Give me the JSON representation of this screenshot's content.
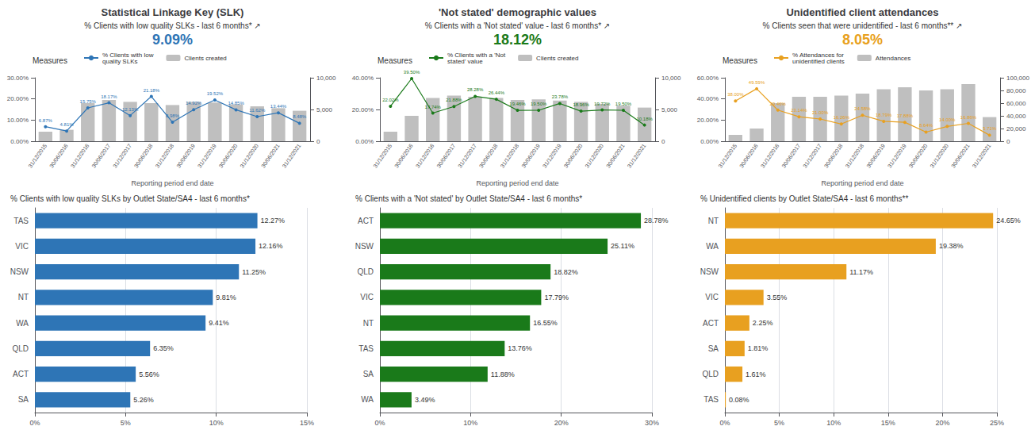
{
  "chart_data": [
    {
      "type": "bar",
      "title": "Statistical Linkage Key (SLK)",
      "subtitle": "% Clients with low quality SLKs - last 6 months* ↗",
      "annotations": [
        "9.09%"
      ],
      "legend_title": "Measures",
      "legend": "top",
      "xlabel": "Reporting period end date",
      "categories": [
        "31/12/2015",
        "30/06/2016",
        "31/12/2016",
        "30/06/2017",
        "31/12/2017",
        "30/06/2018",
        "31/12/2018",
        "30/06/2019",
        "31/12/2019",
        "30/06/2020",
        "31/12/2020",
        "30/06/2021",
        "31/12/2021"
      ],
      "series": [
        {
          "name": "% Clients with low\nquality SLKs",
          "type": "line",
          "color": "#2e75b6",
          "marker": "circle",
          "line_style": "solid",
          "data_labels": true,
          "values": [
            6.87,
            4.81,
            15.75,
            18.17,
            12.13,
            21.18,
            8.98,
            14.92,
            19.52,
            14.85,
            11.62,
            13.44,
            8.48
          ],
          "value_labels": [
            "6.87%",
            "4.81%",
            "15.75%",
            "18.17%",
            "12.13%",
            "21.18%",
            "8.98%",
            "14.92%",
            "19.52%",
            "14.85%",
            "11.62%",
            "13.44%",
            "8.48%"
          ]
        },
        {
          "name": "Clients created",
          "type": "bar",
          "color": "#bfbfbf",
          "axis": "y2",
          "values": [
            1500,
            1800,
            6000,
            6500,
            6200,
            6000,
            5700,
            6200,
            6100,
            5800,
            5500,
            5200,
            4800
          ]
        }
      ],
      "ylim": [
        0,
        30
      ],
      "yticks": [
        {
          "value": 0,
          "label": "0.00%"
        },
        {
          "value": 10,
          "label": "10.00%"
        },
        {
          "value": 20,
          "label": "20.00%"
        },
        {
          "value": 30,
          "label": "30.00%"
        }
      ],
      "y2lim": [
        0,
        10000
      ],
      "y2ticks": [
        0,
        {
          "value": 5000,
          "label": "5,000"
        },
        {
          "value": 10000,
          "label": "10,000"
        }
      ],
      "grid": false
    },
    {
      "type": "bar",
      "orientation": "horizontal",
      "title": "% Clients with low quality SLKs by Outlet State/SA4 - last 6 months*",
      "categories": [
        "TAS",
        "VIC",
        "NSW",
        "NT",
        "WA",
        "QLD",
        "ACT",
        "SA"
      ],
      "values": [
        12.27,
        12.16,
        11.25,
        9.81,
        9.41,
        6.35,
        5.56,
        5.26
      ],
      "value_labels": [
        "12.27%",
        "12.16%",
        "11.25%",
        "9.81%",
        "9.41%",
        "6.35%",
        "5.56%",
        "5.26%"
      ],
      "data_labels": true,
      "color": "#2e75b6",
      "xlim": [
        0,
        15
      ],
      "xticks": [
        {
          "value": 0,
          "label": "0%"
        },
        {
          "value": 5,
          "label": "5%"
        },
        {
          "value": 10,
          "label": "10%"
        },
        {
          "value": 15,
          "label": "15%"
        }
      ],
      "grid": true
    },
    {
      "type": "bar",
      "title": "'Not stated' demographic values",
      "subtitle": "% Clients with a 'Not stated' value - last 6 months* ↗",
      "annotations": [
        "18.12%"
      ],
      "legend_title": "Measures",
      "legend": "top",
      "xlabel": "Reporting period end date",
      "categories": [
        "31/12/2015",
        "30/06/2016",
        "31/12/2016",
        "30/06/2017",
        "31/12/2017",
        "30/06/2018",
        "31/12/2018",
        "30/06/2019",
        "31/12/2019",
        "30/06/2020",
        "31/12/2020",
        "30/06/2021",
        "31/12/2021"
      ],
      "series": [
        {
          "name": "% Clients with a 'Not\nstated' value",
          "type": "line",
          "color": "#1a7a1a",
          "marker": "circle",
          "line_style": "solid",
          "data_labels": true,
          "values": [
            22.02,
            39.5,
            17.74,
            21.88,
            28.28,
            26.44,
            19.46,
            19.5,
            23.78,
            18.96,
            19.72,
            19.5,
            10.18
          ],
          "value_labels": [
            "22.02%",
            "39.50%",
            "17.74%",
            "21.88%",
            "28.28%",
            "26.44%",
            "19.46%",
            "19.50%",
            "23.78%",
            "18.96%",
            "19.72%",
            "19.50%",
            "10.18%"
          ]
        },
        {
          "name": "Clients created",
          "type": "bar",
          "color": "#bfbfbf",
          "axis": "y2",
          "values": [
            1500,
            4000,
            6800,
            7200,
            7000,
            6800,
            6500,
            6600,
            6400,
            6200,
            5900,
            5600,
            5300
          ]
        }
      ],
      "ylim": [
        0,
        40
      ],
      "yticks": [
        {
          "value": 0,
          "label": "0.00%"
        },
        {
          "value": 20,
          "label": "20.00%"
        },
        {
          "value": 40,
          "label": "40.00%"
        }
      ],
      "y2lim": [
        0,
        10000
      ],
      "y2ticks": [
        0,
        {
          "value": 5000,
          "label": "5,000"
        },
        {
          "value": 10000,
          "label": "10,000"
        }
      ],
      "grid": false
    },
    {
      "type": "bar",
      "orientation": "horizontal",
      "title": "% Clients with a 'Not stated' by Outlet State/SA4 - last 6 months*",
      "categories": [
        "ACT",
        "NSW",
        "QLD",
        "VIC",
        "NT",
        "TAS",
        "SA",
        "WA"
      ],
      "values": [
        28.78,
        25.11,
        18.82,
        17.79,
        16.55,
        13.76,
        11.88,
        3.49
      ],
      "value_labels": [
        "28.78%",
        "25.11%",
        "18.82%",
        "17.79%",
        "16.55%",
        "13.76%",
        "11.88%",
        "3.49%"
      ],
      "data_labels": true,
      "color": "#1a7a1a",
      "xlim": [
        0,
        30
      ],
      "xticks": [
        {
          "value": 0,
          "label": "0%"
        },
        {
          "value": 10,
          "label": "10%"
        },
        {
          "value": 20,
          "label": "20%"
        },
        {
          "value": 30,
          "label": "30%"
        }
      ],
      "grid": true
    },
    {
      "type": "bar",
      "title": "Unidentified client attendances",
      "subtitle": "% Clients seen that were unidentified - last 6 months** ↗",
      "annotations": [
        "8.05%"
      ],
      "legend_title": "Measures",
      "legend": "top",
      "xlabel": "Reporting period end date",
      "categories": [
        "31/12/2015",
        "30/06/2016",
        "31/12/2016",
        "30/06/2017",
        "31/12/2017",
        "30/06/2018",
        "31/12/2018",
        "30/06/2019",
        "31/12/2019",
        "30/06/2020",
        "31/12/2020",
        "30/06/2021",
        "31/12/2021"
      ],
      "series": [
        {
          "name": "% Attendances for\nunidentified clients",
          "type": "line",
          "color": "#e8a020",
          "marker": "circle",
          "line_style": "solid",
          "data_labels": true,
          "values": [
            38.0,
            49.59,
            29.46,
            23.14,
            21.0,
            16.26,
            24.58,
            18.79,
            17.88,
            8.64,
            14.0,
            16.86,
            5.71
          ],
          "value_labels": [
            "38.00%",
            "49.59%",
            "29.46%",
            "23.14%",
            "21.00%",
            "16.26%",
            "24.58%",
            "18.79%",
            "17.88%",
            "8.64%",
            "14.00%",
            "16.86%",
            "5.71%"
          ]
        },
        {
          "name": "Attendances",
          "type": "bar",
          "color": "#bfbfbf",
          "axis": "y2",
          "values": [
            10000,
            20000,
            60000,
            70000,
            70000,
            72000,
            75000,
            82000,
            85000,
            80000,
            82000,
            90000,
            38000
          ]
        }
      ],
      "ylim": [
        0,
        60
      ],
      "yticks": [
        {
          "value": 0,
          "label": "0.00%"
        },
        {
          "value": 20,
          "label": "20.00%"
        },
        {
          "value": 40,
          "label": "40.00%"
        },
        {
          "value": 60,
          "label": "60.00%"
        }
      ],
      "y2lim": [
        0,
        100000
      ],
      "y2ticks": [
        0,
        {
          "value": 20000,
          "label": "20,000"
        },
        {
          "value": 40000,
          "label": "40,000"
        },
        {
          "value": 60000,
          "label": "60,000"
        },
        {
          "value": 80000,
          "label": "80,000"
        },
        {
          "value": 100000,
          "label": "100,000"
        }
      ],
      "grid": false
    },
    {
      "type": "bar",
      "orientation": "horizontal",
      "title": "% Unidentified clients by Outlet State/SA4 - last 6 months**",
      "categories": [
        "NT",
        "WA",
        "NSW",
        "VIC",
        "ACT",
        "SA",
        "QLD",
        "TAS"
      ],
      "values": [
        24.65,
        19.38,
        11.17,
        3.55,
        2.25,
        1.81,
        1.61,
        0.08
      ],
      "value_labels": [
        "24.65%",
        "19.38%",
        "11.17%",
        "3.55%",
        "2.25%",
        "1.81%",
        "1.61%",
        "0.08%"
      ],
      "data_labels": true,
      "color": "#e8a020",
      "xlim": [
        0,
        25
      ],
      "xticks": [
        {
          "value": 0,
          "label": "0%"
        },
        {
          "value": 5,
          "label": "5%"
        },
        {
          "value": 10,
          "label": "10%"
        },
        {
          "value": 15,
          "label": "15%"
        },
        {
          "value": 20,
          "label": "20%"
        },
        {
          "value": 25,
          "label": "25%"
        }
      ],
      "grid": true
    }
  ]
}
